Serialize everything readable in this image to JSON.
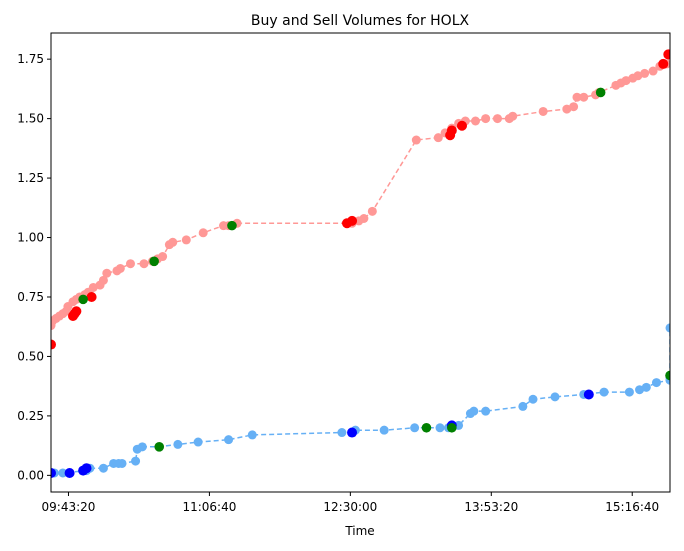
{
  "chart_data": {
    "type": "scatter",
    "title": "Buy and Sell Volumes for HOLX",
    "xlabel": "Time",
    "ylabel": "",
    "xlim": [
      "09:33:00",
      "15:39:00"
    ],
    "ylim": [
      -0.07,
      1.86
    ],
    "x_ticks": [
      "09:43:20",
      "11:06:40",
      "12:30:00",
      "13:53:20",
      "15:16:40"
    ],
    "y_ticks": [
      "0.00",
      "0.25",
      "0.50",
      "0.75",
      "1.00",
      "1.25",
      "1.50",
      "1.75"
    ],
    "grid": false,
    "colors": {
      "buy_line": "#ff9896",
      "buy_marker": "#ff9896",
      "sell_line": "#66b0f5",
      "sell_marker": "#66b0f5",
      "large_buy": "#ff0000",
      "large_sell": "#0000ff",
      "highlight": "#008000"
    },
    "series": [
      {
        "role": "buy",
        "line_style": "dashed",
        "points": [
          [
            "09:33:00",
            0.63
          ],
          [
            "09:34:00",
            0.65
          ],
          [
            "09:36:00",
            0.66
          ],
          [
            "09:38:00",
            0.67
          ],
          [
            "09:40:00",
            0.68
          ],
          [
            "09:42:00",
            0.69
          ],
          [
            "09:43:00",
            0.71
          ],
          [
            "09:46:00",
            0.73
          ],
          [
            "09:48:00",
            0.74
          ],
          [
            "09:50:00",
            0.75
          ],
          [
            "09:53:00",
            0.76
          ],
          [
            "09:55:00",
            0.77
          ],
          [
            "09:58:00",
            0.79
          ],
          [
            "10:02:00",
            0.8
          ],
          [
            "10:04:00",
            0.82
          ],
          [
            "10:06:00",
            0.85
          ],
          [
            "10:12:00",
            0.86
          ],
          [
            "10:14:00",
            0.87
          ],
          [
            "10:20:00",
            0.89
          ],
          [
            "10:28:00",
            0.89
          ],
          [
            "10:33:00",
            0.9
          ],
          [
            "10:36:00",
            0.91
          ],
          [
            "10:39:00",
            0.92
          ],
          [
            "10:43:00",
            0.97
          ],
          [
            "10:45:00",
            0.98
          ],
          [
            "10:53:00",
            0.99
          ],
          [
            "11:03:00",
            1.02
          ],
          [
            "11:15:00",
            1.05
          ],
          [
            "11:18:00",
            1.05
          ],
          [
            "11:23:00",
            1.06
          ],
          [
            "12:31:00",
            1.06
          ],
          [
            "12:35:00",
            1.07
          ],
          [
            "12:38:00",
            1.08
          ],
          [
            "12:43:00",
            1.11
          ],
          [
            "13:09:00",
            1.41
          ],
          [
            "13:22:00",
            1.42
          ],
          [
            "13:26:00",
            1.44
          ],
          [
            "13:30:00",
            1.46
          ],
          [
            "13:34:00",
            1.48
          ],
          [
            "13:38:00",
            1.49
          ],
          [
            "13:44:00",
            1.49
          ],
          [
            "13:50:00",
            1.5
          ],
          [
            "13:57:00",
            1.5
          ],
          [
            "14:04:00",
            1.5
          ],
          [
            "14:06:00",
            1.51
          ],
          [
            "14:24:00",
            1.53
          ],
          [
            "14:38:00",
            1.54
          ],
          [
            "14:42:00",
            1.55
          ],
          [
            "14:44:00",
            1.59
          ],
          [
            "14:48:00",
            1.59
          ],
          [
            "14:55:00",
            1.6
          ],
          [
            "14:57:00",
            1.61
          ],
          [
            "15:07:00",
            1.64
          ],
          [
            "15:10:00",
            1.65
          ],
          [
            "15:13:00",
            1.66
          ],
          [
            "15:17:00",
            1.67
          ],
          [
            "15:20:00",
            1.68
          ],
          [
            "15:24:00",
            1.69
          ],
          [
            "15:29:00",
            1.7
          ],
          [
            "15:33:00",
            1.72
          ],
          [
            "15:37:00",
            1.73
          ],
          [
            "15:39:00",
            1.77
          ]
        ],
        "large": [
          [
            "09:33:00",
            0.55
          ],
          [
            "09:46:00",
            0.67
          ],
          [
            "09:47:00",
            0.68
          ],
          [
            "09:48:00",
            0.69
          ],
          [
            "09:57:00",
            0.75
          ],
          [
            "12:28:00",
            1.06
          ],
          [
            "12:31:00",
            1.07
          ],
          [
            "13:29:00",
            1.43
          ],
          [
            "13:30:00",
            1.45
          ],
          [
            "13:36:00",
            1.47
          ],
          [
            "15:35:00",
            1.73
          ],
          [
            "15:38:00",
            1.77
          ]
        ],
        "highlight": [
          [
            "09:52:00",
            0.74
          ],
          [
            "10:34:00",
            0.9
          ],
          [
            "11:20:00",
            1.05
          ],
          [
            "14:58:00",
            1.61
          ]
        ]
      },
      {
        "role": "sell",
        "line_style": "dashed",
        "points": [
          [
            "09:33:00",
            0.01
          ],
          [
            "09:35:00",
            0.01
          ],
          [
            "09:40:00",
            0.01
          ],
          [
            "09:54:00",
            0.02
          ],
          [
            "09:56:00",
            0.03
          ],
          [
            "10:04:00",
            0.03
          ],
          [
            "10:10:00",
            0.05
          ],
          [
            "10:13:00",
            0.05
          ],
          [
            "10:15:00",
            0.05
          ],
          [
            "10:23:00",
            0.06
          ],
          [
            "10:24:00",
            0.11
          ],
          [
            "10:27:00",
            0.12
          ],
          [
            "10:37:00",
            0.12
          ],
          [
            "10:48:00",
            0.13
          ],
          [
            "11:00:00",
            0.14
          ],
          [
            "11:18:00",
            0.15
          ],
          [
            "11:32:00",
            0.17
          ],
          [
            "12:25:00",
            0.18
          ],
          [
            "12:33:00",
            0.19
          ],
          [
            "12:50:00",
            0.19
          ],
          [
            "13:08:00",
            0.2
          ],
          [
            "13:23:00",
            0.2
          ],
          [
            "13:28:00",
            0.2
          ],
          [
            "13:34:00",
            0.21
          ],
          [
            "13:41:00",
            0.26
          ],
          [
            "13:43:00",
            0.27
          ],
          [
            "13:50:00",
            0.27
          ],
          [
            "14:12:00",
            0.29
          ],
          [
            "14:18:00",
            0.32
          ],
          [
            "14:31:00",
            0.33
          ],
          [
            "14:48:00",
            0.34
          ],
          [
            "15:00:00",
            0.35
          ],
          [
            "15:15:00",
            0.35
          ],
          [
            "15:21:00",
            0.36
          ],
          [
            "15:25:00",
            0.37
          ],
          [
            "15:31:00",
            0.39
          ],
          [
            "15:40:00",
            0.4
          ],
          [
            "15:44:00",
            0.41
          ],
          [
            "15:49:00",
            0.42
          ],
          [
            "15:52:00",
            0.62
          ]
        ],
        "large": [
          [
            "09:33:00",
            0.01
          ],
          [
            "09:44:00",
            0.01
          ],
          [
            "09:52:00",
            0.02
          ],
          [
            "09:54:00",
            0.03
          ],
          [
            "12:31:00",
            0.18
          ],
          [
            "13:30:00",
            0.21
          ],
          [
            "14:51:00",
            0.34
          ]
        ],
        "highlight": [
          [
            "10:37:00",
            0.12
          ],
          [
            "13:15:00",
            0.2
          ],
          [
            "13:30:00",
            0.2
          ],
          [
            "15:43:00",
            0.42
          ]
        ]
      }
    ]
  }
}
